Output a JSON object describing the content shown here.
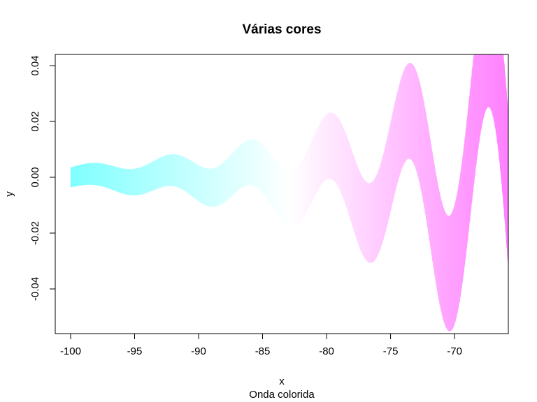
{
  "chart_data": {
    "type": "area",
    "title": "Várias cores",
    "xlabel": "x",
    "ylabel": "y",
    "subtitle": "Onda colorida",
    "xlim": [
      -101.2,
      -65.8
    ],
    "ylim": [
      -0.056,
      0.044
    ],
    "xticks": [
      {
        "value": -100,
        "label": "-100"
      },
      {
        "value": -95,
        "label": "-95"
      },
      {
        "value": -90,
        "label": "-90"
      },
      {
        "value": -85,
        "label": "-85"
      },
      {
        "value": -80,
        "label": "-80"
      },
      {
        "value": -75,
        "label": "-75"
      },
      {
        "value": -70,
        "label": "-70"
      }
    ],
    "yticks": [
      {
        "value": -0.04,
        "label": "-0.04"
      },
      {
        "value": -0.02,
        "label": "-0.02"
      },
      {
        "value": 0.0,
        "label": "0.00"
      },
      {
        "value": 0.02,
        "label": "0.02"
      },
      {
        "value": 0.04,
        "label": "0.04"
      }
    ],
    "wave": {
      "x_start": -100,
      "x_end": -65.8,
      "center_amplitude_start": 0.001,
      "center_amplitude_growth": 0.12,
      "period": 6.2,
      "band_width_start": 0.0035,
      "band_width_growth": 0.06
    },
    "gradient_colors": [
      "#80ffff",
      "#ffffff",
      "#ff80ff"
    ],
    "grid": false,
    "legend": "none"
  }
}
